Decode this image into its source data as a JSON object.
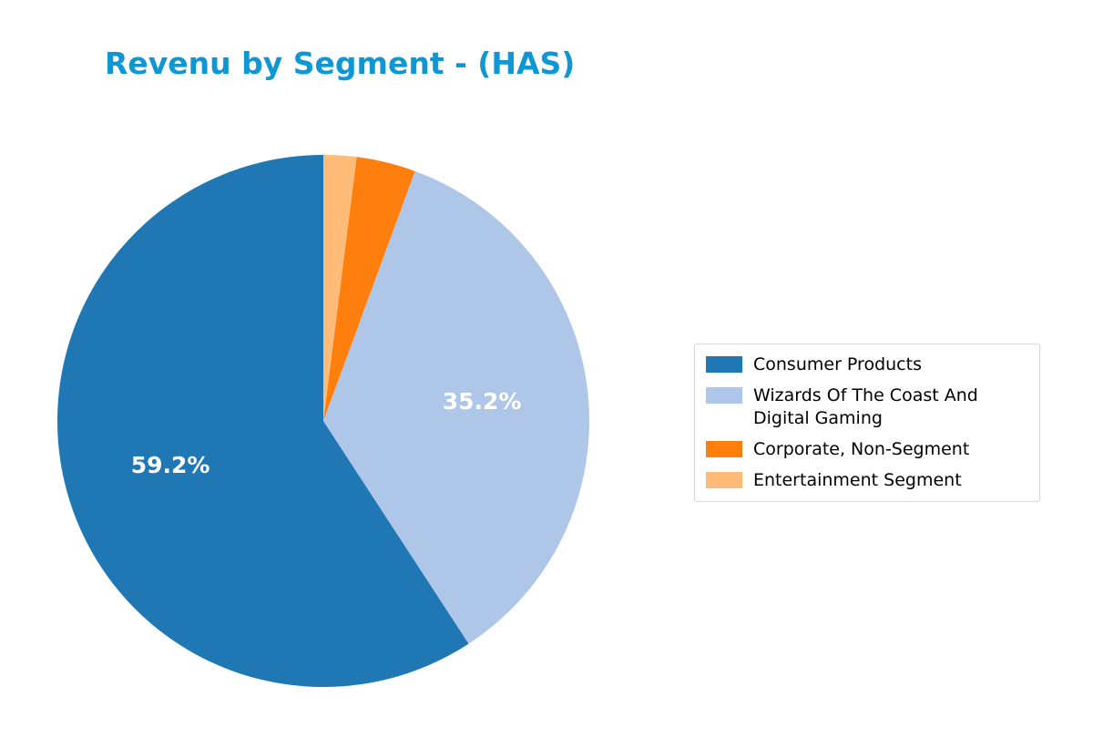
{
  "chart_data": {
    "type": "pie",
    "title": "Revenu by Segment - (HAS)",
    "title_color": "#0f97d4",
    "labels": [
      "Consumer Products",
      "Wizards Of The Coast And Digital Gaming",
      "Corporate, Non-Segment",
      "Entertainment Segment"
    ],
    "values": [
      59.2,
      35.2,
      3.6,
      2.0
    ],
    "pct_labels": [
      "59.2%",
      "35.2%",
      "",
      ""
    ],
    "colors": [
      "#1f77b4",
      "#aec7e8",
      "#ff7f0e",
      "#ffbb78"
    ],
    "start_angle": 90,
    "direction": "counterclockwise",
    "pct_distance": 0.6,
    "legend_position": "center right",
    "grid": false
  }
}
